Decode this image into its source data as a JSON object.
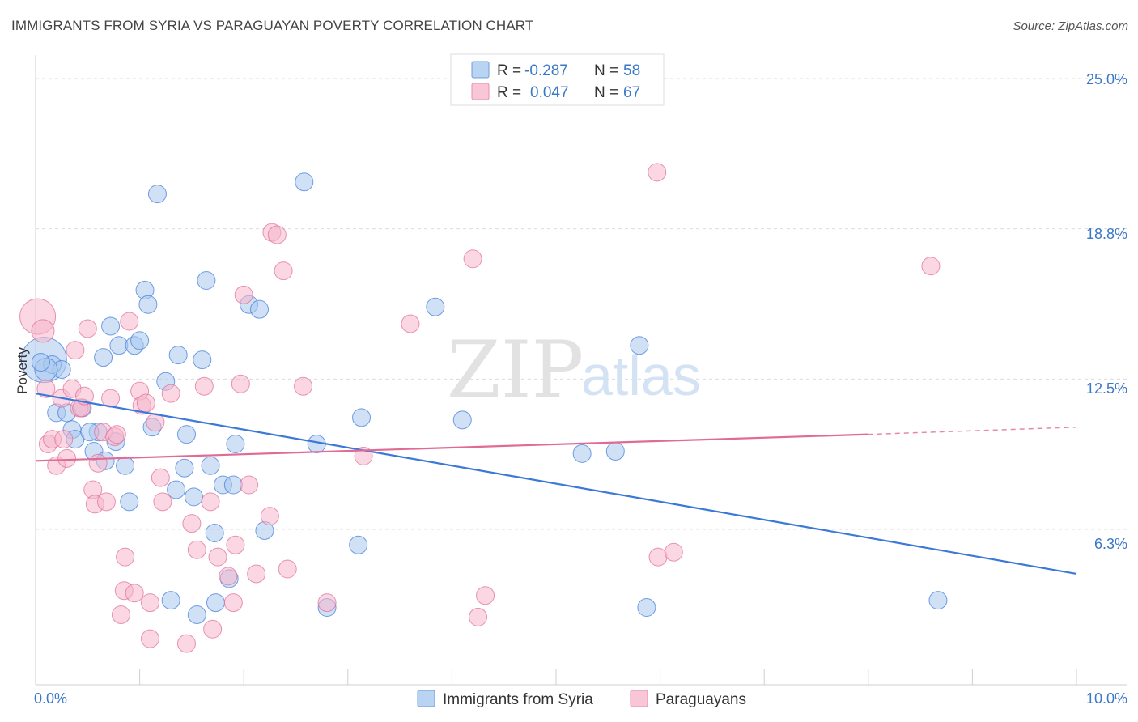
{
  "chart_data": {
    "type": "scatter",
    "title": "IMMIGRANTS FROM SYRIA VS PARAGUAYAN POVERTY CORRELATION CHART",
    "source": "Source: ZipAtlas.com",
    "ylabel": "Poverty",
    "xlabel": "",
    "xlim": [
      0,
      10
    ],
    "ylim": [
      0,
      26
    ],
    "x_tick_labels": [
      "0.0%",
      "10.0%"
    ],
    "y_ticks": [
      {
        "value": 6.25,
        "label": "6.3%"
      },
      {
        "value": 12.5,
        "label": "12.5%"
      },
      {
        "value": 18.75,
        "label": "18.8%"
      },
      {
        "value": 25.0,
        "label": "25.0%"
      }
    ],
    "watermark": {
      "zip": "ZIP",
      "atlas": "atlas"
    },
    "legend": [
      {
        "r_label": "R = ",
        "r": "-0.287",
        "n_label": "N = ",
        "n": "58"
      },
      {
        "r_label": "R = ",
        "r": "0.047",
        "n_label": "N = ",
        "n": "67"
      }
    ],
    "series": [
      {
        "name": "Immigrants from Syria",
        "color": "#3b78d8",
        "fill": "#a9c8ee",
        "trend": {
          "x0": 0,
          "y0": 11.9,
          "x1": 10,
          "y1": 4.4
        },
        "points": [
          [
            0.08,
            13.3
          ],
          [
            0.16,
            13.1
          ],
          [
            0.25,
            12.9
          ],
          [
            0.2,
            11.1
          ],
          [
            0.3,
            11.1
          ],
          [
            0.45,
            11.3
          ],
          [
            0.35,
            10.4
          ],
          [
            0.38,
            10.0
          ],
          [
            0.6,
            10.3
          ],
          [
            0.52,
            10.3
          ],
          [
            0.77,
            9.9
          ],
          [
            0.56,
            9.5
          ],
          [
            0.67,
            9.1
          ],
          [
            0.86,
            8.9
          ],
          [
            0.72,
            14.7
          ],
          [
            0.8,
            13.9
          ],
          [
            0.95,
            13.9
          ],
          [
            1.0,
            14.1
          ],
          [
            0.65,
            13.4
          ],
          [
            1.05,
            16.2
          ],
          [
            1.08,
            15.6
          ],
          [
            1.17,
            20.2
          ],
          [
            1.12,
            10.5
          ],
          [
            1.25,
            12.4
          ],
          [
            1.37,
            13.5
          ],
          [
            1.45,
            10.2
          ],
          [
            1.43,
            8.8
          ],
          [
            1.35,
            7.9
          ],
          [
            1.52,
            7.6
          ],
          [
            1.6,
            13.3
          ],
          [
            1.64,
            16.6
          ],
          [
            1.68,
            8.9
          ],
          [
            1.8,
            8.1
          ],
          [
            1.72,
            6.1
          ],
          [
            1.9,
            8.1
          ],
          [
            1.92,
            9.8
          ],
          [
            2.05,
            15.6
          ],
          [
            2.15,
            15.4
          ],
          [
            2.2,
            6.2
          ],
          [
            0.9,
            7.4
          ],
          [
            1.3,
            3.3
          ],
          [
            1.55,
            2.7
          ],
          [
            1.73,
            3.2
          ],
          [
            1.86,
            4.2
          ],
          [
            2.58,
            20.7
          ],
          [
            2.7,
            9.8
          ],
          [
            2.8,
            3.0
          ],
          [
            3.13,
            10.9
          ],
          [
            3.1,
            5.6
          ],
          [
            3.84,
            15.5
          ],
          [
            4.1,
            10.8
          ],
          [
            5.25,
            9.4
          ],
          [
            5.57,
            9.5
          ],
          [
            5.8,
            13.9
          ],
          [
            5.87,
            3.0
          ],
          [
            8.67,
            3.3
          ],
          [
            0.1,
            12.9
          ],
          [
            0.05,
            13.2
          ]
        ],
        "point_sizes": [
          28,
          11,
          11,
          11,
          11,
          11,
          11,
          11,
          11,
          11,
          11,
          11,
          11,
          11,
          11,
          11,
          11,
          11,
          11,
          11,
          11,
          11,
          11,
          11,
          11,
          11,
          11,
          11,
          11,
          11,
          11,
          11,
          11,
          11,
          11,
          11,
          11,
          11,
          11,
          11,
          11,
          11,
          11,
          11,
          11,
          11,
          11,
          11,
          11,
          11,
          11,
          11,
          11,
          11,
          11,
          11,
          14,
          11
        ]
      },
      {
        "name": "Paraguayans",
        "color": "#e06b95",
        "fill": "#f6b7cc",
        "trend": {
          "x0": 0,
          "y0": 9.1,
          "x1": 8.0,
          "y1": 10.2,
          "dash_to_x": 10,
          "dash_to_y": 10.5
        },
        "points": [
          [
            0.02,
            15.1
          ],
          [
            0.07,
            14.5
          ],
          [
            0.1,
            12.1
          ],
          [
            0.12,
            9.8
          ],
          [
            0.16,
            10.0
          ],
          [
            0.2,
            8.9
          ],
          [
            0.25,
            11.7
          ],
          [
            0.27,
            10.0
          ],
          [
            0.3,
            9.2
          ],
          [
            0.35,
            12.1
          ],
          [
            0.38,
            13.7
          ],
          [
            0.42,
            11.3
          ],
          [
            0.44,
            11.3
          ],
          [
            0.47,
            11.8
          ],
          [
            0.5,
            14.6
          ],
          [
            0.55,
            7.9
          ],
          [
            0.57,
            7.3
          ],
          [
            0.6,
            9.0
          ],
          [
            0.65,
            10.3
          ],
          [
            0.68,
            7.4
          ],
          [
            0.72,
            11.7
          ],
          [
            0.76,
            10.1
          ],
          [
            0.78,
            10.2
          ],
          [
            0.82,
            2.7
          ],
          [
            0.85,
            3.7
          ],
          [
            0.86,
            5.1
          ],
          [
            0.9,
            14.9
          ],
          [
            0.95,
            3.6
          ],
          [
            1.0,
            12.0
          ],
          [
            1.02,
            11.4
          ],
          [
            1.06,
            11.5
          ],
          [
            1.1,
            3.2
          ],
          [
            1.1,
            1.7
          ],
          [
            1.15,
            10.7
          ],
          [
            1.2,
            8.4
          ],
          [
            1.22,
            7.4
          ],
          [
            1.3,
            11.9
          ],
          [
            1.45,
            1.5
          ],
          [
            1.5,
            6.5
          ],
          [
            1.55,
            5.4
          ],
          [
            1.62,
            12.2
          ],
          [
            1.68,
            7.4
          ],
          [
            1.7,
            2.1
          ],
          [
            1.75,
            5.1
          ],
          [
            1.85,
            4.3
          ],
          [
            1.9,
            3.2
          ],
          [
            1.92,
            5.6
          ],
          [
            1.97,
            12.3
          ],
          [
            2.0,
            16.0
          ],
          [
            2.05,
            8.1
          ],
          [
            2.12,
            4.4
          ],
          [
            2.25,
            6.8
          ],
          [
            2.27,
            18.6
          ],
          [
            2.32,
            18.5
          ],
          [
            2.38,
            17.0
          ],
          [
            2.42,
            4.6
          ],
          [
            2.57,
            12.2
          ],
          [
            2.8,
            3.2
          ],
          [
            3.15,
            9.3
          ],
          [
            3.6,
            14.8
          ],
          [
            4.2,
            17.5
          ],
          [
            4.25,
            2.6
          ],
          [
            4.32,
            3.5
          ],
          [
            5.97,
            21.1
          ],
          [
            5.98,
            5.1
          ],
          [
            6.13,
            5.3
          ],
          [
            8.6,
            17.2
          ]
        ],
        "point_sizes": [
          22,
          14,
          11,
          11,
          11,
          11,
          11,
          11,
          11,
          11,
          11,
          11,
          11,
          11,
          11,
          11,
          11,
          11,
          11,
          11,
          11,
          11,
          11,
          11,
          11,
          11,
          11,
          11,
          11,
          11,
          11,
          11,
          11,
          11,
          11,
          11,
          11,
          11,
          11,
          11,
          11,
          11,
          11,
          11,
          11,
          11,
          11,
          11,
          11,
          11,
          11,
          11,
          11,
          11,
          11,
          11,
          11,
          11,
          11,
          11,
          11,
          11,
          11,
          11,
          11,
          11,
          11
        ]
      }
    ]
  }
}
